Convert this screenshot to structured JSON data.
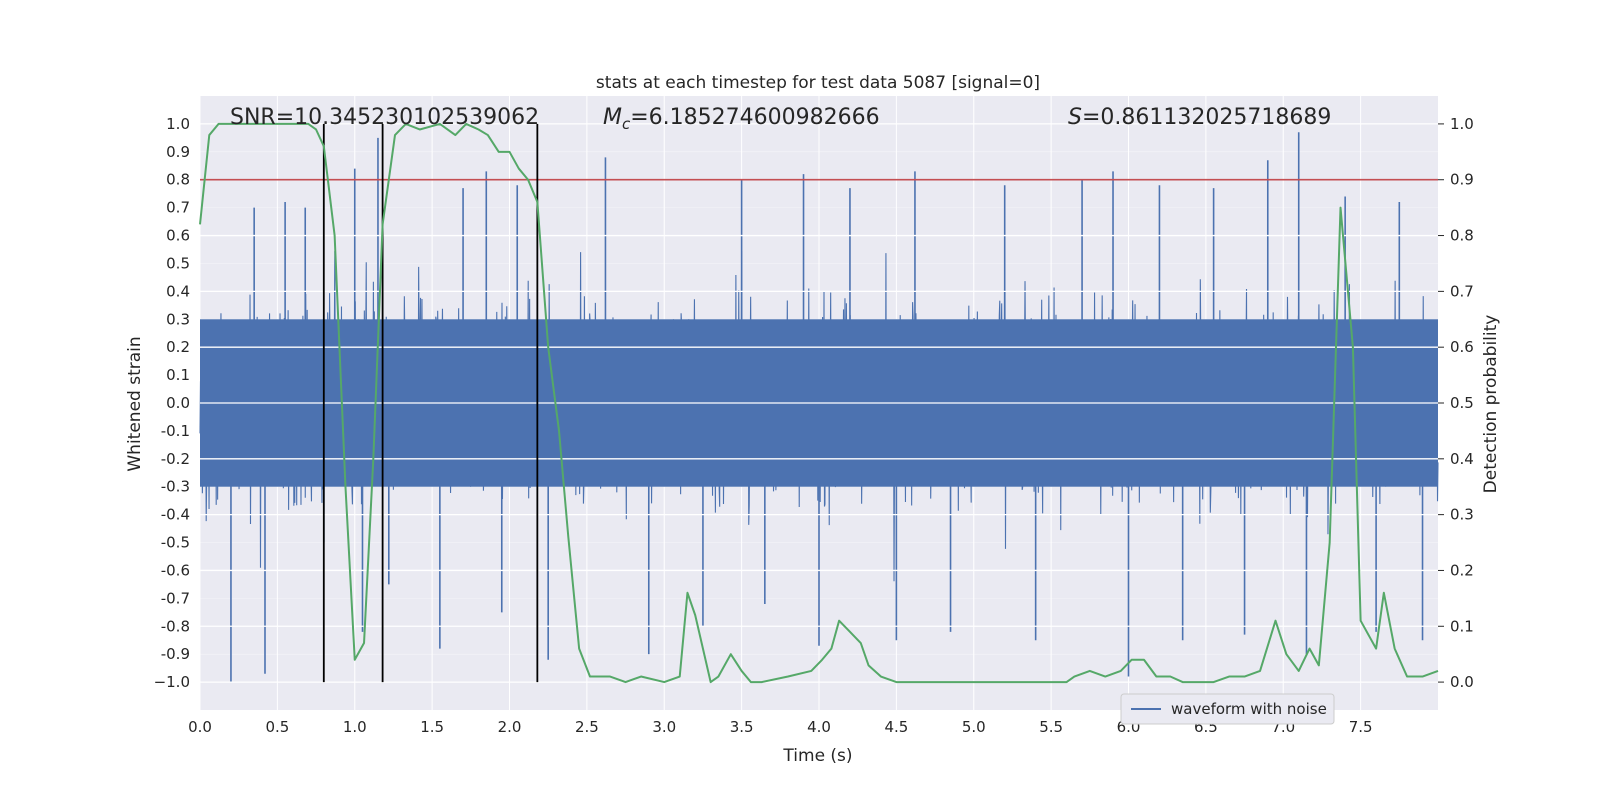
{
  "chart_data": {
    "type": "line",
    "title": "stats at each timestep for test data 5087 [signal=0]",
    "xlabel": "Time (s)",
    "ylabel_left": "Whitened strain",
    "ylabel_right": "Detection probability",
    "xlim": [
      0.0,
      8.0
    ],
    "ylim_left": [
      -1.1,
      1.1
    ],
    "ylim_right": [
      -0.05,
      1.05
    ],
    "x_ticks": [
      "0.0",
      "0.5",
      "1.0",
      "1.5",
      "2.0",
      "2.5",
      "3.0",
      "3.5",
      "4.0",
      "4.5",
      "5.0",
      "5.5",
      "6.0",
      "6.5",
      "7.0",
      "7.5"
    ],
    "x_tick_values": [
      0,
      0.5,
      1,
      1.5,
      2,
      2.5,
      3,
      3.5,
      4,
      4.5,
      5,
      5.5,
      6,
      6.5,
      7,
      7.5
    ],
    "y_left_ticks": [
      "1.0",
      "0.9",
      "0.8",
      "0.7",
      "0.6",
      "0.5",
      "0.4",
      "0.3",
      "0.2",
      "0.1",
      "0.0",
      "-0.1",
      "-0.2",
      "-0.3",
      "-0.4",
      "-0.5",
      "-0.6",
      "-0.7",
      "-0.8",
      "-0.9",
      "−1.0"
    ],
    "y_left_tick_values": [
      1.0,
      0.9,
      0.8,
      0.7,
      0.6,
      0.5,
      0.4,
      0.3,
      0.2,
      0.1,
      0.0,
      -0.1,
      -0.2,
      -0.3,
      -0.4,
      -0.5,
      -0.6,
      -0.7,
      -0.8,
      -0.9,
      -1.0
    ],
    "y_right_ticks": [
      "1.0",
      "0.9",
      "0.8",
      "0.7",
      "0.6",
      "0.5",
      "0.4",
      "0.3",
      "0.2",
      "0.1",
      "0.0"
    ],
    "y_right_tick_values": [
      1.0,
      0.9,
      0.8,
      0.7,
      0.6,
      0.5,
      0.4,
      0.3,
      0.2,
      0.1,
      0.0
    ],
    "annotations": {
      "snr": "SNR=10.345230102539062",
      "mc_symbol": "M",
      "mc_sub": "c",
      "mc_value": "=6.185274600982666",
      "s_symbol": "S",
      "s_value": "=0.861132025718689"
    },
    "threshold": 0.9,
    "threshold_color": "#c44e52",
    "vlines": [
      0.8,
      1.18,
      2.18
    ],
    "vline_color": "#000000",
    "legend": {
      "label": "waveform with noise",
      "placement": "lower-center-right"
    },
    "series": [
      {
        "name": "waveform with noise",
        "color": "#4c72b0",
        "kind": "noise",
        "typical_range": [
          -0.42,
          0.42
        ],
        "peaks_x": [
          0.2,
          0.35,
          0.42,
          0.55,
          0.68,
          0.8,
          1.0,
          1.05,
          1.15,
          1.22,
          1.55,
          1.7,
          1.85,
          1.95,
          2.05,
          2.25,
          2.62,
          2.9,
          3.25,
          3.5,
          3.65,
          3.9,
          4.0,
          4.2,
          4.5,
          4.62,
          4.85,
          5.2,
          5.4,
          5.7,
          5.9,
          6.0,
          6.2,
          6.35,
          6.55,
          6.75,
          6.9,
          7.1,
          7.15,
          7.4,
          7.6,
          7.75,
          7.9
        ],
        "peaks_y": [
          -1.0,
          0.7,
          -0.97,
          0.72,
          0.7,
          -0.5,
          0.84,
          -0.82,
          0.95,
          -0.65,
          -0.88,
          0.77,
          0.83,
          -0.75,
          0.78,
          -0.92,
          0.88,
          -0.9,
          -0.8,
          0.8,
          -0.72,
          0.82,
          -0.87,
          0.77,
          -0.85,
          0.83,
          -0.82,
          0.78,
          -0.85,
          0.8,
          0.83,
          -0.98,
          0.78,
          -0.85,
          0.77,
          -0.83,
          0.87,
          0.97,
          -0.9,
          0.74,
          -0.82,
          0.72,
          -0.85
        ]
      },
      {
        "name": "detection probability",
        "color": "#55a868",
        "axis": "right",
        "x": [
          0.0,
          0.06,
          0.12,
          0.2,
          0.4,
          0.6,
          0.7,
          0.75,
          0.8,
          0.87,
          0.94,
          1.0,
          1.06,
          1.12,
          1.18,
          1.26,
          1.33,
          1.42,
          1.55,
          1.65,
          1.72,
          1.8,
          1.86,
          1.93,
          2.0,
          2.06,
          2.12,
          2.18,
          2.25,
          2.32,
          2.38,
          2.45,
          2.52,
          2.65,
          2.75,
          2.85,
          3.0,
          3.1,
          3.15,
          3.2,
          3.3,
          3.35,
          3.43,
          3.5,
          3.56,
          3.63,
          3.8,
          3.95,
          4.02,
          4.08,
          4.13,
          4.2,
          4.27,
          4.32,
          4.4,
          4.5,
          4.75,
          5.0,
          5.2,
          5.4,
          5.6,
          5.65,
          5.75,
          5.85,
          5.95,
          6.02,
          6.1,
          6.18,
          6.27,
          6.35,
          6.45,
          6.55,
          6.65,
          6.75,
          6.85,
          6.95,
          7.02,
          7.1,
          7.17,
          7.23,
          7.3,
          7.37,
          7.45,
          7.5,
          7.56,
          7.6,
          7.65,
          7.72,
          7.8,
          7.9,
          8.0
        ],
        "y": [
          0.82,
          0.98,
          1.0,
          1.0,
          1.0,
          1.0,
          1.0,
          0.99,
          0.96,
          0.8,
          0.35,
          0.04,
          0.07,
          0.4,
          0.82,
          0.98,
          1.0,
          0.99,
          1.0,
          0.98,
          1.0,
          0.99,
          0.98,
          0.95,
          0.95,
          0.92,
          0.9,
          0.86,
          0.6,
          0.45,
          0.26,
          0.06,
          0.01,
          0.01,
          0.0,
          0.01,
          0.0,
          0.01,
          0.16,
          0.12,
          0.0,
          0.01,
          0.05,
          0.02,
          0.0,
          0.0,
          0.01,
          0.02,
          0.04,
          0.06,
          0.11,
          0.09,
          0.07,
          0.03,
          0.01,
          0.0,
          0.0,
          0.0,
          0.0,
          0.0,
          0.0,
          0.01,
          0.02,
          0.01,
          0.02,
          0.04,
          0.04,
          0.01,
          0.01,
          0.0,
          0.0,
          0.0,
          0.01,
          0.01,
          0.02,
          0.11,
          0.05,
          0.02,
          0.06,
          0.03,
          0.25,
          0.85,
          0.6,
          0.11,
          0.08,
          0.06,
          0.16,
          0.06,
          0.01,
          0.01,
          0.02
        ]
      }
    ]
  }
}
